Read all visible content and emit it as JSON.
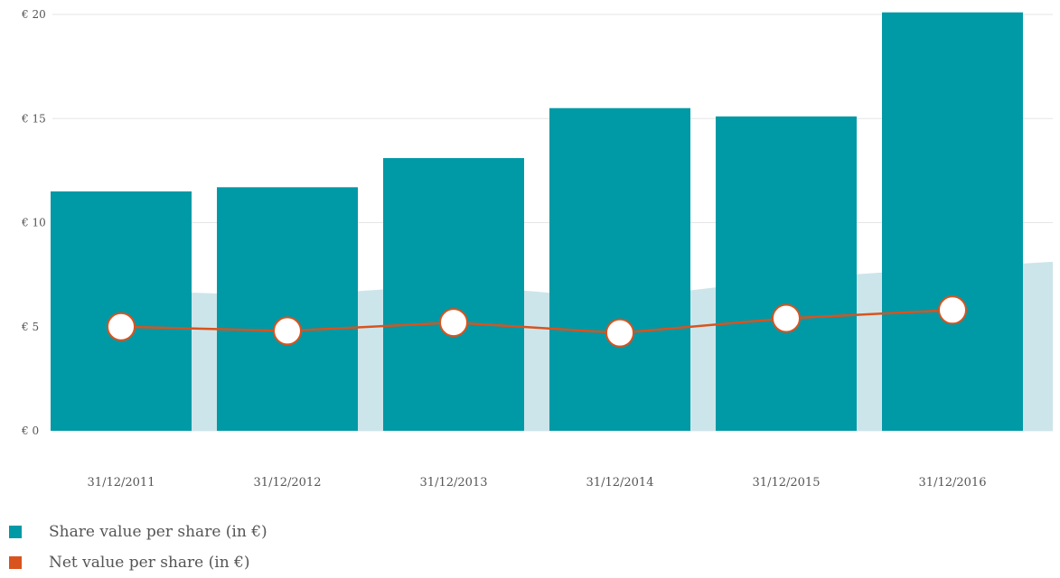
{
  "colors": {
    "bar": "#0099a6",
    "line": "#d9531e",
    "area": "#cce5ea",
    "grid": "#e6e6e6"
  },
  "chart_data": {
    "type": "bar",
    "categories": [
      "31/12/2011",
      "31/12/2012",
      "31/12/2013",
      "31/12/2014",
      "31/12/2015",
      "31/12/2016"
    ],
    "series": [
      {
        "name": "Share value per share (in €)",
        "type": "bar",
        "values": [
          11.5,
          11.7,
          13.1,
          15.5,
          15.1,
          20.1
        ]
      },
      {
        "name": "Net value per share (in €)",
        "type": "line",
        "values": [
          5.0,
          4.8,
          5.2,
          4.7,
          5.4,
          5.8
        ]
      }
    ],
    "yticks": [
      0,
      5,
      10,
      15,
      20
    ],
    "ytick_labels": [
      "€ 0",
      "€ 5",
      "€ 10",
      "€ 15",
      "€ 20"
    ],
    "ylim": [
      0,
      20
    ],
    "grid": true,
    "legend_position": "bottom-left"
  },
  "legend": [
    {
      "label": "Share value per share (in €)",
      "color": "#0099a6"
    },
    {
      "label": "Net value per share (in €)",
      "color": "#d9531e"
    }
  ]
}
